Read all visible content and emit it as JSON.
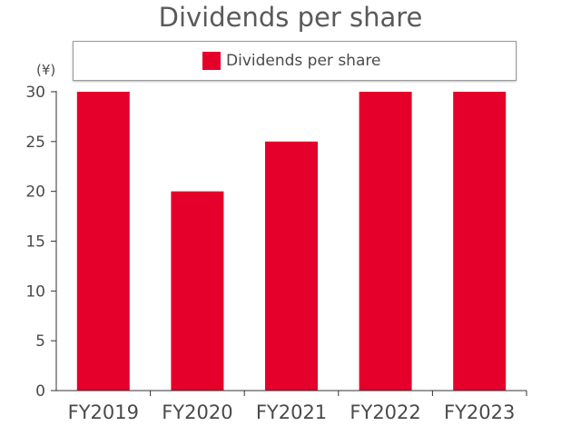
{
  "chart_data": {
    "type": "bar",
    "title": "Dividends per share",
    "unit_label": "(¥)",
    "categories": [
      "FY2019",
      "FY2020",
      "FY2021",
      "FY2022",
      "FY2023"
    ],
    "series": [
      {
        "name": "Dividends per share",
        "values": [
          30,
          20,
          25,
          30,
          30
        ],
        "color": "#e4002b"
      }
    ],
    "ylim": [
      0,
      30
    ],
    "yticks": [
      0,
      5,
      10,
      15,
      20,
      25,
      30
    ],
    "grid": false,
    "legend_position": "top"
  }
}
